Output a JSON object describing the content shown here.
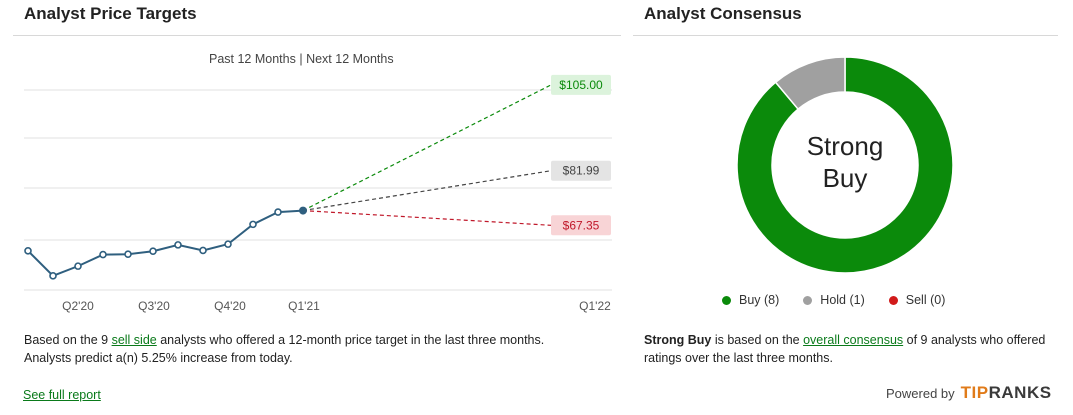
{
  "left_panel": {
    "title": "Analyst Price Targets",
    "tab_past": "Past 12 Months",
    "tab_sep": " | ",
    "tab_next": "Next 12 Months",
    "desc_part1": "Based on the 9 ",
    "desc_link": "sell side",
    "desc_part2": " analysts who offered a 12-month price target in the last three months.",
    "desc_line2": "Analysts predict a(n) 5.25% increase from today.",
    "full_report": "See full report"
  },
  "right_panel": {
    "title": "Analyst Consensus",
    "consensus_line1": "Strong",
    "consensus_line2": "Buy",
    "legend": [
      {
        "label": "Buy (8)",
        "color": "#0b8a0b"
      },
      {
        "label": "Hold (1)",
        "color": "#a0a0a0"
      },
      {
        "label": "Sell (0)",
        "color": "#d11a1a"
      }
    ],
    "desc_bold": "Strong Buy",
    "desc_part1": " is based on the ",
    "desc_link": "overall consensus",
    "desc_part2": " of 9 analysts who offered",
    "desc_line2": "ratings over the last three months.",
    "powered_by": "Powered by",
    "brand_tip": "TIP",
    "brand_rest": "RANKS"
  },
  "chart_data": [
    {
      "type": "line",
      "title": "Analyst Price Targets",
      "x_ticks": [
        "Q2'20",
        "Q3'20",
        "Q4'20",
        "Q1'21",
        "Q1'22"
      ],
      "x": [
        0,
        1,
        2,
        3,
        4,
        5,
        6,
        7,
        8,
        9,
        10,
        11
      ],
      "series": [
        {
          "values": [
            60.5,
            53.8,
            56.4,
            59.5,
            59.6,
            60.4,
            62.1,
            60.6,
            62.3,
            67.6,
            70.9,
            71.3
          ],
          "color": "#2f5f7f"
        }
      ],
      "projections": [
        {
          "label": "$105.00",
          "value": 105.0,
          "color": "#0b8a0b",
          "bg": "#dcf3dc"
        },
        {
          "label": "$81.99",
          "value": 81.99,
          "color": "#444444",
          "bg": "#e4e4e4"
        },
        {
          "label": "$67.35",
          "value": 67.35,
          "color": "#c0182a",
          "bg": "#f8d4d6"
        }
      ],
      "grid": true
    },
    {
      "type": "pie",
      "title": "Analyst Consensus",
      "labels": [
        "Buy",
        "Hold",
        "Sell"
      ],
      "values": [
        8,
        1,
        0
      ],
      "colors": [
        "#0b8a0b",
        "#a0a0a0",
        "#d11a1a"
      ]
    }
  ]
}
